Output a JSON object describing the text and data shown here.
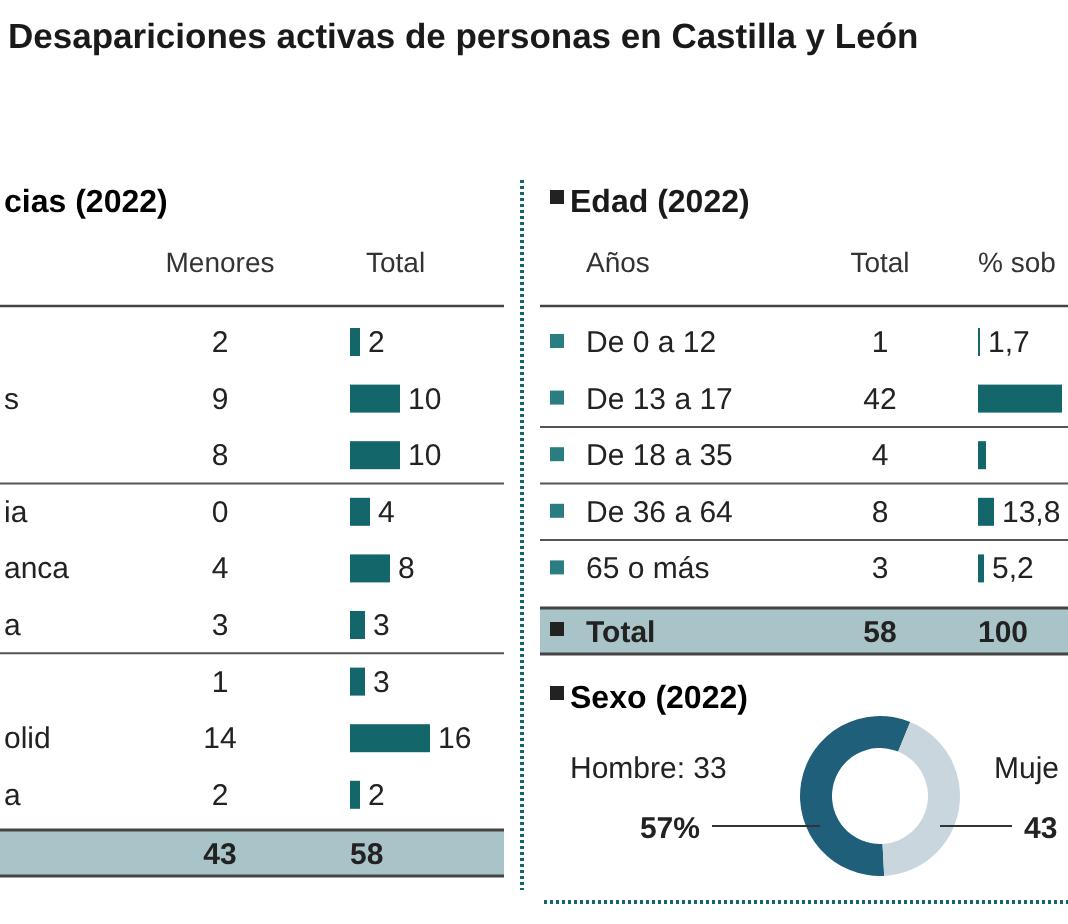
{
  "chart_data": [
    {
      "type": "bar",
      "orientation": "horizontal",
      "title": "Desapariciones activas de personas en Castilla y León",
      "subtitle": "cias (2022)",
      "categories": [
        null,
        "s",
        null,
        "ia",
        "anca",
        "a",
        null,
        "olid",
        "a"
      ],
      "series": [
        {
          "name": "Total",
          "color": "#13666a",
          "values": [
            2,
            10,
            10,
            4,
            8,
            3,
            3,
            16,
            2
          ]
        }
      ],
      "data_labels": true,
      "annotations": [
        "Menores",
        "2",
        "9",
        "8",
        "0",
        "4",
        "3",
        "1",
        "14",
        "2",
        "43",
        "58"
      ]
    },
    {
      "type": "bar",
      "orientation": "horizontal",
      "title": "Edad (2022)",
      "ylabel": "Años",
      "categories": [
        "De 0 a 12",
        "De 13 a 17",
        "De 18 a 35",
        "De 36 a 64",
        "65 o más"
      ],
      "series": [
        {
          "name": "% sob",
          "color": "#13666a",
          "values": [
            1.7,
            72.4,
            6.9,
            13.8,
            5.2
          ],
          "value_labels": [
            "1,7",
            null,
            null,
            "13,8",
            "5,2"
          ]
        }
      ],
      "annotations": [
        "Total",
        "1",
        "42",
        "4",
        "8",
        "3",
        "Total",
        "58",
        "100"
      ]
    },
    {
      "type": "donut",
      "title": "Sexo (2022)",
      "categories": [
        "Hombre: 33",
        "Muje"
      ],
      "values": [
        57,
        43
      ],
      "colors": [
        "#1f5f7a",
        "#c9d6de"
      ],
      "value_labels": [
        "57%",
        "43"
      ]
    }
  ]
}
